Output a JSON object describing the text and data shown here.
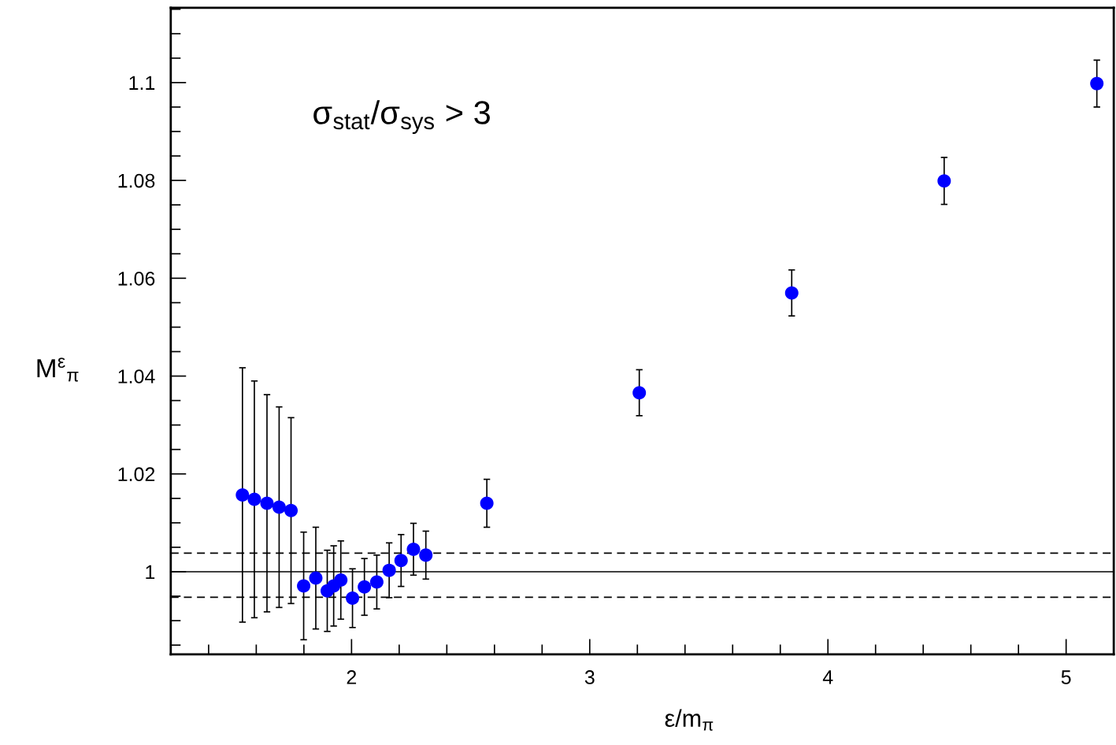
{
  "chart_data": {
    "type": "scatter",
    "xlabel": "ε/m$_{π}$",
    "ylabel": "M$^{ε}$$_{π}$",
    "annotations": [
      "σ$_{stat}$/σ$_{sys}$ > 3"
    ],
    "x": [
      1.542,
      1.592,
      1.645,
      1.696,
      1.746,
      1.799,
      1.85,
      1.898,
      1.925,
      1.955,
      2.004,
      2.054,
      2.106,
      2.158,
      2.208,
      2.26,
      2.312,
      2.568,
      3.208,
      3.848,
      4.488,
      5.129
    ],
    "series": [
      {
        "color": "#0000ff",
        "values": [
          1.0157,
          1.0148,
          1.014,
          1.0132,
          1.0125,
          0.9971,
          0.9987,
          0.9961,
          0.9971,
          0.9983,
          0.9946,
          0.9969,
          0.9979,
          1.0003,
          1.0023,
          1.0046,
          1.0034,
          1.014,
          1.0366,
          1.057,
          1.0799,
          1.0998
        ],
        "errors": [
          0.026,
          0.0242,
          0.0222,
          0.0205,
          0.019,
          0.011,
          0.0104,
          0.0083,
          0.0082,
          0.008,
          0.006,
          0.0058,
          0.0055,
          0.0056,
          0.0053,
          0.0053,
          0.0049,
          0.0049,
          0.0047,
          0.0047,
          0.0048,
          0.0048
        ]
      }
    ],
    "marker": "circle",
    "xlim": [
      1.241,
      5.2
    ],
    "ylim": [
      0.9831,
      1.1153
    ],
    "xticks": [
      2,
      3,
      4,
      5
    ],
    "yticks": [
      1,
      1.02,
      1.04,
      1.06,
      1.08,
      1.1
    ],
    "ref_lines": [
      {
        "axis": "y",
        "value": 1.0,
        "color": "#000000",
        "line_style": "solid"
      },
      {
        "axis": "y",
        "value": 1.0038,
        "color": "#000000",
        "line_style": "dashed"
      },
      {
        "axis": "y",
        "value": 0.9948,
        "color": "#000000",
        "line_style": "dashed"
      }
    ],
    "grid": false,
    "legend": false
  }
}
